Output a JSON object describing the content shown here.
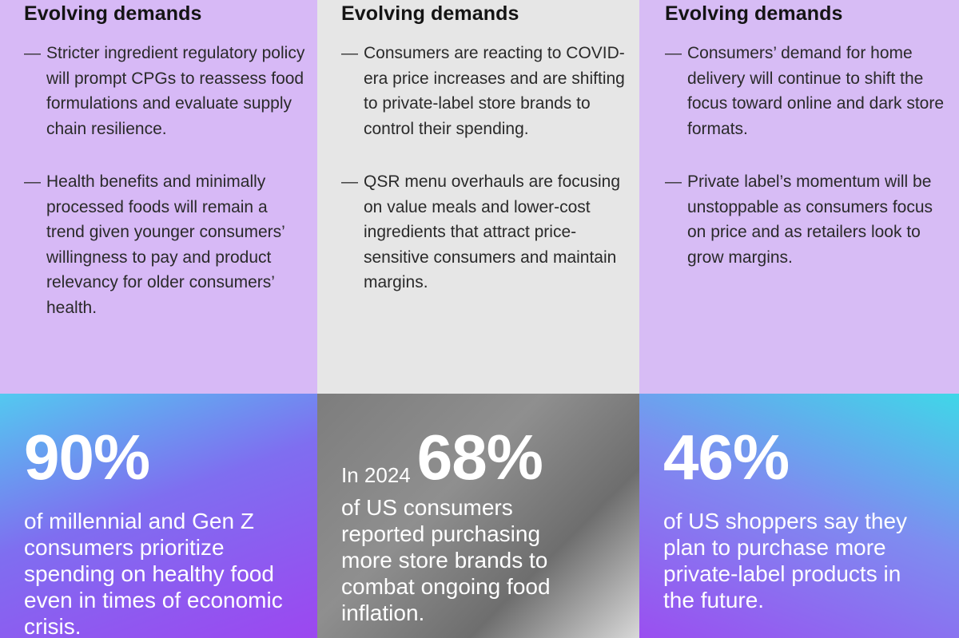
{
  "columns": [
    {
      "heading": "Evolving demands",
      "bullets": [
        "Stricter ingredient regulatory policy will prompt CPGs to reassess food formulations and evaluate supply chain resilience.",
        "Health benefits and minimally processed foods will remain a trend given younger consumers’ willingness to pay and product relevancy for older consumers’ health."
      ],
      "stat": {
        "prefix": "",
        "value": "90%",
        "text": "of millennial and Gen Z consumers prioritize spending on healthy food even in times of economic crisis."
      }
    },
    {
      "heading": "Evolving demands",
      "bullets": [
        "Consumers are reacting to COVID-era price increases and are shifting to private-label store brands to control their spending.",
        "QSR menu overhauls are focusing on value meals and lower-cost ingredients that attract price-sensitive consumers and maintain margins."
      ],
      "stat": {
        "prefix": "In 2024",
        "value": "68%",
        "text": "of US consumers reported purchasing more store brands to combat ongoing food inflation."
      }
    },
    {
      "heading": "Evolving demands",
      "bullets": [
        "Consumers’ demand for home delivery will continue to shift the focus toward online and dark store formats.",
        "Private label’s momentum will be unstoppable as consumers focus on price and as retailers look to grow margins."
      ],
      "stat": {
        "prefix": "",
        "value": "46%",
        "text": "of US shoppers say they plan to purchase more private-label products in the future."
      }
    }
  ],
  "dash_glyph": "—",
  "colors": {
    "lavender": "#d7b9f6",
    "gray": "#e6e6e6",
    "gradient_purple": "#9c47f0",
    "gradient_cyan": "#53c9f0"
  }
}
